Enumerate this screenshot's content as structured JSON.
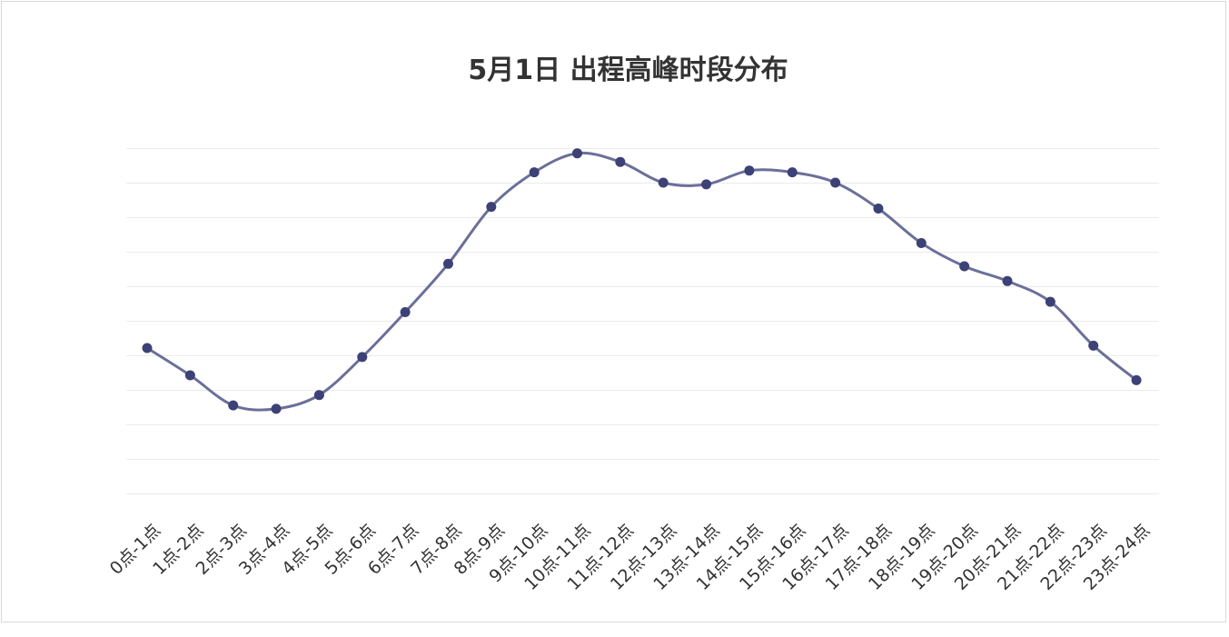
{
  "chart_data": {
    "type": "line",
    "title": "5月1日 出程高峰时段分布",
    "xlabel": "",
    "ylabel": "",
    "categories": [
      "0点-1点",
      "1点-2点",
      "2点-3点",
      "3点-4点",
      "4点-5点",
      "5点-6点",
      "6点-7点",
      "7点-8点",
      "8点-9点",
      "9点-10点",
      "10点-11点",
      "11点-12点",
      "12点-13点",
      "13点-14点",
      "14点-15点",
      "15点-16点",
      "16点-17点",
      "17点-18点",
      "18点-19点",
      "19点-20点",
      "20点-21点",
      "21点-22点",
      "22点-23点",
      "23点-24点"
    ],
    "series": [
      {
        "values": [
          32.1,
          24.2,
          15.5,
          14.5,
          18.5,
          29.5,
          42.5,
          56.5,
          73.0,
          83.0,
          88.5,
          86.0,
          80.0,
          79.5,
          83.5,
          83.0,
          80.0,
          72.5,
          62.5,
          55.8,
          51.5,
          45.5,
          32.8,
          22.8
        ]
      }
    ],
    "ylim": [
      -10,
      90
    ],
    "grid": true,
    "legend": "none",
    "smooth": true,
    "line_color": "#6b6f99",
    "marker_color": "#3c4176",
    "grid_color": "#ebebeb",
    "label_color": "#333333"
  }
}
